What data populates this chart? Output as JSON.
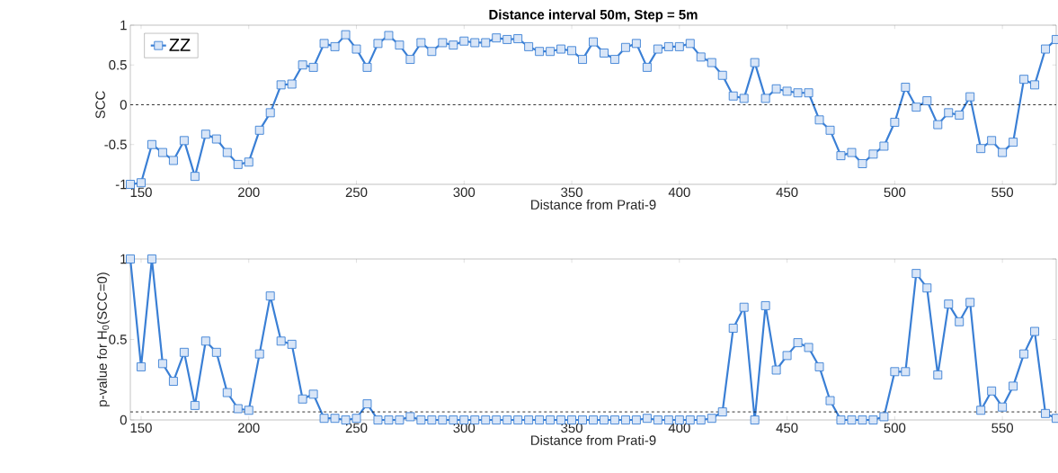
{
  "chart_data": [
    {
      "type": "line",
      "title": "Distance interval 50m, Step = 5m",
      "xlabel": "Distance from Prati-9",
      "ylabel": "SCC",
      "x": [
        145,
        150,
        155,
        160,
        165,
        170,
        175,
        180,
        185,
        190,
        195,
        200,
        205,
        210,
        215,
        220,
        225,
        230,
        235,
        240,
        245,
        250,
        255,
        260,
        265,
        270,
        275,
        280,
        285,
        290,
        295,
        300,
        305,
        310,
        315,
        320,
        325,
        330,
        335,
        340,
        345,
        350,
        355,
        360,
        365,
        370,
        375,
        380,
        385,
        390,
        395,
        400,
        405,
        410,
        415,
        420,
        425,
        430,
        435,
        440,
        445,
        450,
        455,
        460,
        465,
        470,
        475,
        480,
        485,
        490,
        495,
        500,
        505,
        510,
        515,
        520,
        525,
        530,
        535,
        540,
        545,
        550,
        555,
        560,
        565,
        570,
        575
      ],
      "series": [
        {
          "name": "ZZ",
          "color": "#3a7fd5",
          "values": [
            -1.0,
            -0.98,
            -0.5,
            -0.6,
            -0.7,
            -0.45,
            -0.9,
            -0.37,
            -0.43,
            -0.6,
            -0.75,
            -0.72,
            -0.32,
            -0.1,
            0.25,
            0.26,
            0.5,
            0.47,
            0.77,
            0.73,
            0.88,
            0.7,
            0.47,
            0.77,
            0.87,
            0.75,
            0.57,
            0.78,
            0.67,
            0.78,
            0.75,
            0.8,
            0.78,
            0.78,
            0.84,
            0.82,
            0.83,
            0.73,
            0.67,
            0.67,
            0.7,
            0.68,
            0.57,
            0.79,
            0.65,
            0.57,
            0.72,
            0.77,
            0.47,
            0.7,
            0.73,
            0.73,
            0.77,
            0.6,
            0.53,
            0.37,
            0.11,
            0.08,
            0.53,
            0.08,
            0.2,
            0.17,
            0.15,
            0.15,
            -0.19,
            -0.32,
            -0.64,
            -0.6,
            -0.74,
            -0.62,
            -0.52,
            -0.22,
            0.22,
            -0.03,
            0.05,
            -0.25,
            -0.1,
            -0.13,
            0.1,
            -0.55,
            -0.45,
            -0.6,
            -0.47,
            0.32,
            0.25,
            0.7,
            0.82
          ]
        }
      ],
      "xlim": [
        145,
        575
      ],
      "xticks": [
        150,
        200,
        250,
        300,
        350,
        400,
        450,
        500,
        550
      ],
      "ylim": [
        -1,
        1
      ],
      "yticks": [
        -1,
        -0.5,
        0,
        0.5,
        1
      ],
      "ref_lines": [
        {
          "axis": "y",
          "value": 0,
          "color": "#000000",
          "line_style": "dashed"
        }
      ],
      "marker": "square",
      "line_style": "solid",
      "grid": false,
      "legend": "top left"
    },
    {
      "type": "line",
      "xlabel": "Distance from Prati-9",
      "ylabel": "p-value for H$_{0}$(SCC=0)",
      "x": [
        145,
        150,
        155,
        160,
        165,
        170,
        175,
        180,
        185,
        190,
        195,
        200,
        205,
        210,
        215,
        220,
        225,
        230,
        235,
        240,
        245,
        250,
        255,
        260,
        265,
        270,
        275,
        280,
        285,
        290,
        295,
        300,
        305,
        310,
        315,
        320,
        325,
        330,
        335,
        340,
        345,
        350,
        355,
        360,
        365,
        370,
        375,
        380,
        385,
        390,
        395,
        400,
        405,
        410,
        415,
        420,
        425,
        430,
        435,
        440,
        445,
        450,
        455,
        460,
        465,
        470,
        475,
        480,
        485,
        490,
        495,
        500,
        505,
        510,
        515,
        520,
        525,
        530,
        535,
        540,
        545,
        550,
        555,
        560,
        565,
        570,
        575
      ],
      "series": [
        {
          "color": "#3a7fd5",
          "values": [
            1.0,
            0.33,
            1.0,
            0.35,
            0.24,
            0.42,
            0.09,
            0.49,
            0.42,
            0.17,
            0.07,
            0.06,
            0.41,
            0.77,
            0.49,
            0.47,
            0.13,
            0.16,
            0.01,
            0.01,
            0.0,
            0.01,
            0.1,
            0.0,
            0.0,
            0.0,
            0.02,
            0.0,
            0.0,
            0.0,
            0.0,
            0.0,
            0.0,
            0.0,
            0.0,
            0.0,
            0.0,
            0.0,
            0.0,
            0.0,
            0.0,
            0.0,
            0.0,
            0.0,
            0.0,
            0.0,
            0.0,
            0.0,
            0.01,
            0.0,
            0.0,
            0.0,
            0.0,
            0.0,
            0.01,
            0.05,
            0.57,
            0.7,
            0.0,
            0.71,
            0.31,
            0.4,
            0.48,
            0.45,
            0.33,
            0.12,
            0.0,
            0.0,
            0.0,
            0.0,
            0.02,
            0.3,
            0.3,
            0.91,
            0.82,
            0.28,
            0.72,
            0.61,
            0.73,
            0.06,
            0.18,
            0.08,
            0.21,
            0.41,
            0.55,
            0.04,
            0.01
          ]
        }
      ],
      "xlim": [
        145,
        575
      ],
      "xticks": [
        150,
        200,
        250,
        300,
        350,
        400,
        450,
        500,
        550
      ],
      "ylim": [
        0,
        1
      ],
      "yticks": [
        0,
        0.5,
        1
      ],
      "ref_lines": [
        {
          "axis": "y",
          "value": 0.05,
          "color": "#000000",
          "line_style": "dashed"
        }
      ],
      "marker": "square",
      "line_style": "solid",
      "grid": false
    }
  ]
}
